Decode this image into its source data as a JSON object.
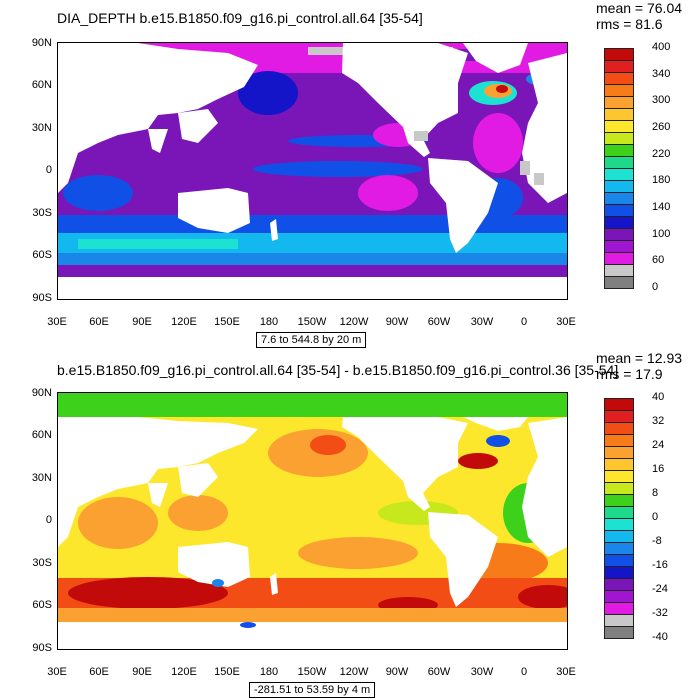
{
  "panels": [
    {
      "title": "DIA_DEPTH b.e15.B1850.f09_g16.pi_control.all.64 [35-54]",
      "stats": {
        "mean": "mean = 76.04",
        "rms": "rms = 81.6"
      },
      "range_label": "7.6 to 544.8 by 20 m",
      "colorbar": {
        "labels": [
          "400",
          "340",
          "300",
          "260",
          "220",
          "180",
          "140",
          "100",
          "60",
          "0"
        ],
        "colors": [
          "#c30a0a",
          "#e02020",
          "#f24d14",
          "#f77c19",
          "#fba131",
          "#fdc52f",
          "#fde72c",
          "#c7e81c",
          "#3ed11b",
          "#1fd98a",
          "#1ce3d1",
          "#12b8ee",
          "#1a86ea",
          "#1050e6",
          "#1414c8",
          "#7a16b8",
          "#a015d0",
          "#e11ae4",
          "#c8c8c8",
          "#808080"
        ]
      }
    },
    {
      "title": "b.e15.B1850.f09_g16.pi_control.all.64 [35-54] - b.e15.B1850.f09_g16.pi_control.36 [35-54]",
      "stats": {
        "mean": "mean = 12.93",
        "rms": "rms = 17.9"
      },
      "range_label": "-281.51 to 53.59 by 4 m",
      "colorbar": {
        "labels": [
          "40",
          "32",
          "24",
          "16",
          "8",
          "0",
          "-8",
          "-16",
          "-24",
          "-32",
          "-40"
        ],
        "colors": [
          "#c30a0a",
          "#e02020",
          "#f24d14",
          "#f77c19",
          "#fba131",
          "#fdc52f",
          "#fde72c",
          "#c7e81c",
          "#3ed11b",
          "#1fd98a",
          "#1ce3d1",
          "#12b8ee",
          "#1a86ea",
          "#1050e6",
          "#1414c8",
          "#7a16b8",
          "#a015d0",
          "#e11ae4",
          "#c8c8c8",
          "#808080"
        ]
      }
    }
  ],
  "axes": {
    "lat_labels": [
      "90N",
      "60N",
      "30N",
      "0",
      "30S",
      "60S",
      "90S"
    ],
    "lon_labels": [
      "30E",
      "60E",
      "90E",
      "120E",
      "150E",
      "180",
      "150W",
      "120W",
      "90W",
      "60W",
      "30W",
      "0",
      "30E"
    ]
  }
}
